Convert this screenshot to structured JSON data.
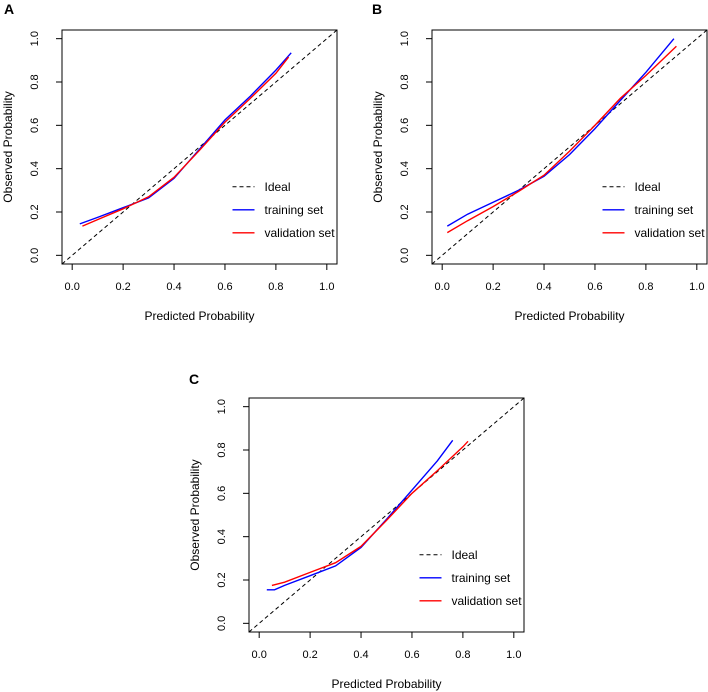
{
  "chart_data": [
    {
      "panel": "A",
      "type": "line",
      "xlabel": "Predicted Probability",
      "ylabel": "Observed Probability",
      "xlim": [
        0,
        1
      ],
      "ylim": [
        0,
        1
      ],
      "xticks": [
        "0.0",
        "0.2",
        "0.4",
        "0.6",
        "0.8",
        "1.0"
      ],
      "yticks": [
        "0.0",
        "0.2",
        "0.4",
        "0.6",
        "0.8",
        "1.0"
      ],
      "legend_position": "bottom-right",
      "series": [
        {
          "name": "Ideal",
          "style": "dashed",
          "color": "#000000",
          "x": [
            0,
            1
          ],
          "y": [
            0,
            1
          ]
        },
        {
          "name": "training set",
          "style": "solid",
          "color": "#0000ff",
          "x": [
            0.03,
            0.1,
            0.2,
            0.3,
            0.4,
            0.5,
            0.6,
            0.7,
            0.8,
            0.86
          ],
          "y": [
            0.145,
            0.175,
            0.22,
            0.265,
            0.355,
            0.49,
            0.625,
            0.735,
            0.855,
            0.935
          ]
        },
        {
          "name": "validation set",
          "style": "solid",
          "color": "#ff0000",
          "x": [
            0.04,
            0.1,
            0.2,
            0.3,
            0.4,
            0.5,
            0.6,
            0.7,
            0.8,
            0.85
          ],
          "y": [
            0.135,
            0.165,
            0.215,
            0.27,
            0.36,
            0.485,
            0.615,
            0.725,
            0.84,
            0.915
          ]
        }
      ]
    },
    {
      "panel": "B",
      "type": "line",
      "xlabel": "Predicted Probability",
      "ylabel": "Observed Probability",
      "xlim": [
        0,
        1
      ],
      "ylim": [
        0,
        1
      ],
      "xticks": [
        "0.0",
        "0.2",
        "0.4",
        "0.6",
        "0.8",
        "1.0"
      ],
      "yticks": [
        "0.0",
        "0.2",
        "0.4",
        "0.6",
        "0.8",
        "1.0"
      ],
      "legend_position": "bottom-right",
      "series": [
        {
          "name": "Ideal",
          "style": "dashed",
          "color": "#000000",
          "x": [
            0,
            1
          ],
          "y": [
            0,
            1
          ]
        },
        {
          "name": "training set",
          "style": "solid",
          "color": "#0000ff",
          "x": [
            0.02,
            0.1,
            0.2,
            0.3,
            0.4,
            0.5,
            0.6,
            0.7,
            0.8,
            0.91
          ],
          "y": [
            0.135,
            0.19,
            0.245,
            0.3,
            0.365,
            0.465,
            0.585,
            0.715,
            0.845,
            1.0
          ]
        },
        {
          "name": "validation set",
          "style": "solid",
          "color": "#ff0000",
          "x": [
            0.02,
            0.1,
            0.2,
            0.3,
            0.4,
            0.5,
            0.6,
            0.7,
            0.8,
            0.92
          ],
          "y": [
            0.105,
            0.16,
            0.225,
            0.295,
            0.37,
            0.48,
            0.6,
            0.725,
            0.83,
            0.965
          ]
        }
      ]
    },
    {
      "panel": "C",
      "type": "line",
      "xlabel": "Predicted Probability",
      "ylabel": "Observed Probability",
      "xlim": [
        0,
        1
      ],
      "ylim": [
        0,
        1
      ],
      "xticks": [
        "0.0",
        "0.2",
        "0.4",
        "0.6",
        "0.8",
        "1.0"
      ],
      "yticks": [
        "0.0",
        "0.2",
        "0.4",
        "0.6",
        "0.8",
        "1.0"
      ],
      "legend_position": "bottom-right",
      "series": [
        {
          "name": "Ideal",
          "style": "dashed",
          "color": "#000000",
          "x": [
            0,
            1
          ],
          "y": [
            0,
            1
          ]
        },
        {
          "name": "training set",
          "style": "solid",
          "color": "#0000ff",
          "x": [
            0.03,
            0.06,
            0.1,
            0.2,
            0.3,
            0.4,
            0.5,
            0.6,
            0.7,
            0.76
          ],
          "y": [
            0.155,
            0.155,
            0.175,
            0.22,
            0.265,
            0.35,
            0.48,
            0.615,
            0.75,
            0.845
          ]
        },
        {
          "name": "validation set",
          "style": "solid",
          "color": "#ff0000",
          "x": [
            0.05,
            0.1,
            0.2,
            0.3,
            0.4,
            0.5,
            0.6,
            0.7,
            0.8,
            0.82
          ],
          "y": [
            0.175,
            0.19,
            0.235,
            0.28,
            0.355,
            0.475,
            0.6,
            0.705,
            0.815,
            0.84
          ]
        }
      ]
    }
  ]
}
